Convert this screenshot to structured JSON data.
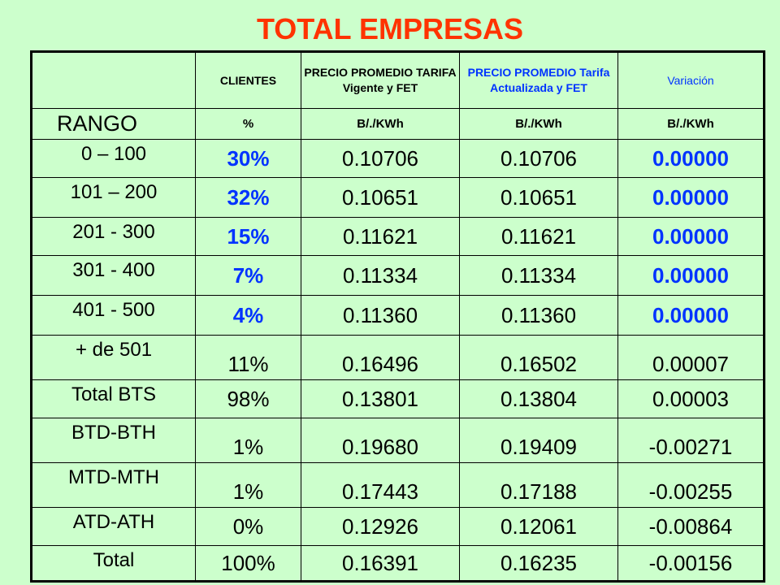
{
  "title": "TOTAL EMPRESAS",
  "header": {
    "col1": "CLIENTES",
    "col2": "PRECIO PROMEDIO TARIFA Vigente y FET",
    "col3": "PRECIO PROMEDIO Tarifa Actualizada y FET",
    "col4": "Variación"
  },
  "units": {
    "col0": "RANGO",
    "col1": "%",
    "col2": "B/./KWh",
    "col3": "B/./KWh",
    "col4": "B/./KWh"
  },
  "rows": [
    {
      "rango": "0 – 100",
      "clientes": "30%",
      "vigente": "0.10706",
      "actualizada": "0.10706",
      "variacion": "0.00000"
    },
    {
      "rango": "101 – 200",
      "clientes": "32%",
      "vigente": "0.10651",
      "actualizada": "0.10651",
      "variacion": "0.00000"
    },
    {
      "rango": "201 - 300",
      "clientes": "15%",
      "vigente": "0.11621",
      "actualizada": "0.11621",
      "variacion": "0.00000"
    },
    {
      "rango": "301 - 400",
      "clientes": "7%",
      "vigente": "0.11334",
      "actualizada": "0.11334",
      "variacion": "0.00000"
    },
    {
      "rango": "401 - 500",
      "clientes": "4%",
      "vigente": "0.11360",
      "actualizada": "0.11360",
      "variacion": "0.00000"
    },
    {
      "rango": "+ de 501",
      "clientes": "11%",
      "vigente": "0.16496",
      "actualizada": "0.16502",
      "variacion": "0.00007"
    },
    {
      "rango": "Total BTS",
      "clientes": "98%",
      "vigente": "0.13801",
      "actualizada": "0.13804",
      "variacion": "0.00003"
    },
    {
      "rango": "BTD-BTH",
      "clientes": "1%",
      "vigente": "0.19680",
      "actualizada": "0.19409",
      "variacion": "-0.00271"
    },
    {
      "rango": "MTD-MTH",
      "clientes": "1%",
      "vigente": "0.17443",
      "actualizada": "0.17188",
      "variacion": "-0.00255"
    },
    {
      "rango": "ATD-ATH",
      "clientes": "0%",
      "vigente": "0.12926",
      "actualizada": "0.12061",
      "variacion": "-0.00864"
    },
    {
      "rango": "Total",
      "clientes": "100%",
      "vigente": "0.16391",
      "actualizada": "0.16235",
      "variacion": "-0.00156"
    }
  ],
  "colors": {
    "background": "#ccffcc",
    "title": "#ff3300",
    "highlight": "#0033ff",
    "text": "#000000"
  }
}
